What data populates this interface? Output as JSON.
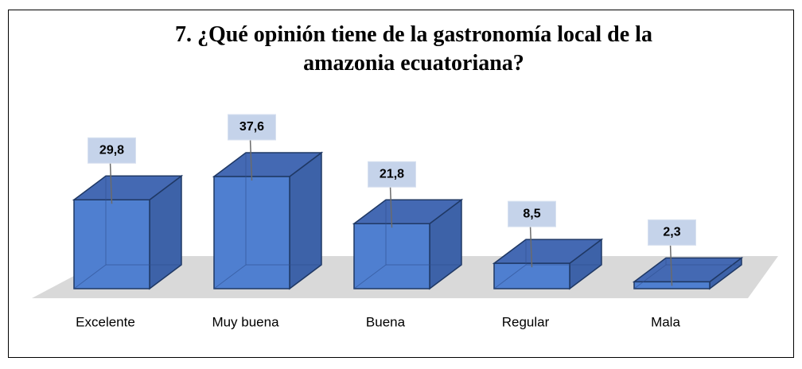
{
  "chart_data": {
    "type": "bar3d",
    "title": "7. ¿Qué opinión tiene de la gastronomía local de la amazonia ecuatoriana?",
    "categories": [
      "Excelente",
      "Muy buena",
      "Buena",
      "Regular",
      "Mala"
    ],
    "values": [
      29.8,
      37.6,
      21.8,
      8.5,
      2.3
    ],
    "value_labels": [
      "29,8",
      "37,6",
      "21,8",
      "8,5",
      "2,3"
    ],
    "color": "#4f7fd0"
  }
}
